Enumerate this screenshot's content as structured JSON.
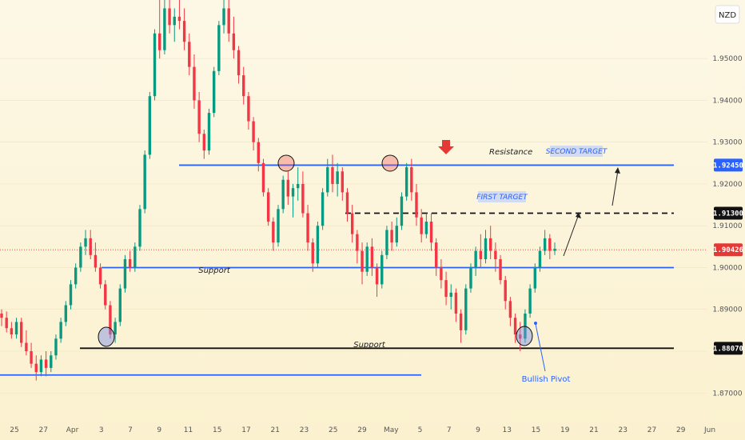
{
  "currency": "NZD",
  "chart_data": {
    "type": "candlestick",
    "y_ticks": [
      "1.95000",
      "1.94000",
      "1.93000",
      "1.92000",
      "1.91000",
      "1.90000",
      "1.89000",
      "1.88000",
      "1.87000"
    ],
    "ylim": [
      1.8645,
      1.964
    ],
    "x_ticks": [
      "25",
      "27",
      "Apr",
      "3",
      "7",
      "9",
      "11",
      "15",
      "17",
      "21",
      "23",
      "25",
      "29",
      "May",
      "5",
      "7",
      "9",
      "13",
      "15",
      "19",
      "21",
      "23",
      "27",
      "29",
      "Jun"
    ],
    "levels": [
      {
        "name": "resistance",
        "value": 1.9245,
        "color": "#2962ff",
        "badge": "1.92450",
        "badge_bg": "#2962ff"
      },
      {
        "name": "first-target",
        "value": 1.913,
        "color": "#111111",
        "badge": "1.91300",
        "badge_bg": "#111111",
        "dashed": true
      },
      {
        "name": "current-price",
        "value": 1.90426,
        "color": "#e53935",
        "badge": "1.90426",
        "badge_bg": "#e53935",
        "dotted": true
      },
      {
        "name": "support-upper",
        "value": 1.9,
        "color": "#2962ff"
      },
      {
        "name": "support-lower",
        "value": 1.8807,
        "color": "#111111",
        "badge": "1.88070",
        "badge_bg": "#111111"
      },
      {
        "name": "old-support",
        "value": 1.8743,
        "color": "#2962ff"
      }
    ],
    "annotations": {
      "resistance": "Resistance",
      "second_target": "SECOND TARGET",
      "first_target": "FIRST TARGET",
      "support_upper": "Support",
      "support_lower": "Support",
      "bullish_pivot": "Bullish Pivot"
    },
    "candles": [
      [
        1.889,
        1.89,
        1.886,
        1.888
      ],
      [
        1.888,
        1.8895,
        1.8845,
        1.8855
      ],
      [
        1.8855,
        1.887,
        1.883,
        1.884
      ],
      [
        1.884,
        1.888,
        1.883,
        1.887
      ],
      [
        1.887,
        1.888,
        1.881,
        1.882
      ],
      [
        1.882,
        1.885,
        1.879,
        1.88
      ],
      [
        1.88,
        1.882,
        1.876,
        1.877
      ],
      [
        1.877,
        1.879,
        1.873,
        1.875
      ],
      [
        1.875,
        1.879,
        1.874,
        1.878
      ],
      [
        1.878,
        1.88,
        1.874,
        1.876
      ],
      [
        1.876,
        1.88,
        1.875,
        1.879
      ],
      [
        1.879,
        1.884,
        1.878,
        1.883
      ],
      [
        1.883,
        1.888,
        1.882,
        1.887
      ],
      [
        1.887,
        1.892,
        1.886,
        1.891
      ],
      [
        1.891,
        1.897,
        1.89,
        1.896
      ],
      [
        1.896,
        1.901,
        1.895,
        1.9
      ],
      [
        1.9,
        1.906,
        1.899,
        1.905
      ],
      [
        1.905,
        1.909,
        1.903,
        1.907
      ],
      [
        1.907,
        1.909,
        1.902,
        1.903
      ],
      [
        1.903,
        1.906,
        1.899,
        1.9
      ],
      [
        1.9,
        1.901,
        1.895,
        1.896
      ],
      [
        1.896,
        1.897,
        1.89,
        1.891
      ],
      [
        1.891,
        1.892,
        1.883,
        1.884
      ],
      [
        1.884,
        1.888,
        1.882,
        1.887
      ],
      [
        1.887,
        1.896,
        1.886,
        1.895
      ],
      [
        1.895,
        1.903,
        1.894,
        1.902
      ],
      [
        1.902,
        1.904,
        1.899,
        1.9
      ],
      [
        1.9,
        1.906,
        1.899,
        1.905
      ],
      [
        1.905,
        1.915,
        1.904,
        1.914
      ],
      [
        1.914,
        1.928,
        1.913,
        1.927
      ],
      [
        1.927,
        1.942,
        1.926,
        1.941
      ],
      [
        1.941,
        1.957,
        1.94,
        1.956
      ],
      [
        1.956,
        1.964,
        1.95,
        1.952
      ],
      [
        1.952,
        1.964,
        1.951,
        1.962
      ],
      [
        1.962,
        1.964,
        1.956,
        1.958
      ],
      [
        1.958,
        1.962,
        1.954,
        1.96
      ],
      [
        1.96,
        1.964,
        1.957,
        1.959
      ],
      [
        1.959,
        1.962,
        1.952,
        1.954
      ],
      [
        1.954,
        1.956,
        1.946,
        1.948
      ],
      [
        1.948,
        1.951,
        1.938,
        1.94
      ],
      [
        1.94,
        1.942,
        1.93,
        1.932
      ],
      [
        1.932,
        1.933,
        1.926,
        1.928
      ],
      [
        1.928,
        1.938,
        1.927,
        1.937
      ],
      [
        1.937,
        1.948,
        1.936,
        1.947
      ],
      [
        1.947,
        1.959,
        1.946,
        1.958
      ],
      [
        1.958,
        1.964,
        1.956,
        1.962
      ],
      [
        1.962,
        1.964,
        1.954,
        1.956
      ],
      [
        1.956,
        1.96,
        1.95,
        1.952
      ],
      [
        1.952,
        1.953,
        1.944,
        1.946
      ],
      [
        1.946,
        1.948,
        1.939,
        1.941
      ],
      [
        1.941,
        1.942,
        1.933,
        1.935
      ],
      [
        1.935,
        1.936,
        1.928,
        1.93
      ],
      [
        1.93,
        1.931,
        1.923,
        1.925
      ],
      [
        1.925,
        1.926,
        1.917,
        1.918
      ],
      [
        1.918,
        1.919,
        1.91,
        1.911
      ],
      [
        1.911,
        1.912,
        1.904,
        1.906
      ],
      [
        1.906,
        1.915,
        1.905,
        1.914
      ],
      [
        1.914,
        1.922,
        1.913,
        1.921
      ],
      [
        1.921,
        1.923,
        1.915,
        1.917
      ],
      [
        1.917,
        1.92,
        1.912,
        1.919
      ],
      [
        1.919,
        1.924,
        1.916,
        1.92
      ],
      [
        1.92,
        1.923,
        1.912,
        1.913
      ],
      [
        1.913,
        1.915,
        1.904,
        1.906
      ],
      [
        1.906,
        1.907,
        1.899,
        1.901
      ],
      [
        1.901,
        1.911,
        1.9,
        1.91
      ],
      [
        1.91,
        1.919,
        1.909,
        1.918
      ],
      [
        1.918,
        1.926,
        1.917,
        1.924
      ],
      [
        1.924,
        1.927,
        1.918,
        1.92
      ],
      [
        1.92,
        1.925,
        1.917,
        1.923
      ],
      [
        1.923,
        1.924,
        1.916,
        1.918
      ],
      [
        1.918,
        1.919,
        1.911,
        1.913
      ],
      [
        1.913,
        1.915,
        1.906,
        1.908
      ],
      [
        1.908,
        1.909,
        1.901,
        1.904
      ],
      [
        1.904,
        1.906,
        1.896,
        1.899
      ],
      [
        1.899,
        1.906,
        1.898,
        1.905
      ],
      [
        1.905,
        1.907,
        1.898,
        1.9
      ],
      [
        1.9,
        1.901,
        1.893,
        1.896
      ],
      [
        1.896,
        1.904,
        1.895,
        1.903
      ],
      [
        1.903,
        1.91,
        1.902,
        1.909
      ],
      [
        1.909,
        1.911,
        1.904,
        1.906
      ],
      [
        1.906,
        1.912,
        1.905,
        1.91
      ],
      [
        1.91,
        1.918,
        1.909,
        1.917
      ],
      [
        1.917,
        1.925,
        1.916,
        1.924
      ],
      [
        1.924,
        1.926,
        1.916,
        1.918
      ],
      [
        1.918,
        1.92,
        1.91,
        1.912
      ],
      [
        1.912,
        1.914,
        1.906,
        1.908
      ],
      [
        1.908,
        1.913,
        1.907,
        1.911
      ],
      [
        1.911,
        1.913,
        1.904,
        1.906
      ],
      [
        1.906,
        1.907,
        1.898,
        1.9
      ],
      [
        1.9,
        1.902,
        1.895,
        1.897
      ],
      [
        1.897,
        1.899,
        1.891,
        1.893
      ],
      [
        1.893,
        1.896,
        1.89,
        1.894
      ],
      [
        1.894,
        1.895,
        1.887,
        1.889
      ],
      [
        1.889,
        1.89,
        1.882,
        1.885
      ],
      [
        1.885,
        1.896,
        1.884,
        1.895
      ],
      [
        1.895,
        1.901,
        1.894,
        1.9
      ],
      [
        1.9,
        1.905,
        1.898,
        1.904
      ],
      [
        1.904,
        1.908,
        1.9,
        1.902
      ],
      [
        1.902,
        1.909,
        1.901,
        1.907
      ],
      [
        1.907,
        1.91,
        1.902,
        1.904
      ],
      [
        1.904,
        1.906,
        1.899,
        1.902
      ],
      [
        1.902,
        1.903,
        1.896,
        1.897
      ],
      [
        1.897,
        1.898,
        1.89,
        1.892
      ],
      [
        1.892,
        1.893,
        1.886,
        1.888
      ],
      [
        1.888,
        1.889,
        1.882,
        1.884
      ],
      [
        1.884,
        1.887,
        1.88,
        1.883
      ],
      [
        1.883,
        1.89,
        1.882,
        1.889
      ],
      [
        1.889,
        1.896,
        1.888,
        1.895
      ],
      [
        1.895,
        1.901,
        1.894,
        1.9
      ],
      [
        1.9,
        1.905,
        1.899,
        1.904
      ],
      [
        1.904,
        1.909,
        1.903,
        1.907
      ],
      [
        1.907,
        1.908,
        1.902,
        1.904
      ],
      [
        1.904,
        1.906,
        1.903,
        1.9045
      ]
    ]
  }
}
